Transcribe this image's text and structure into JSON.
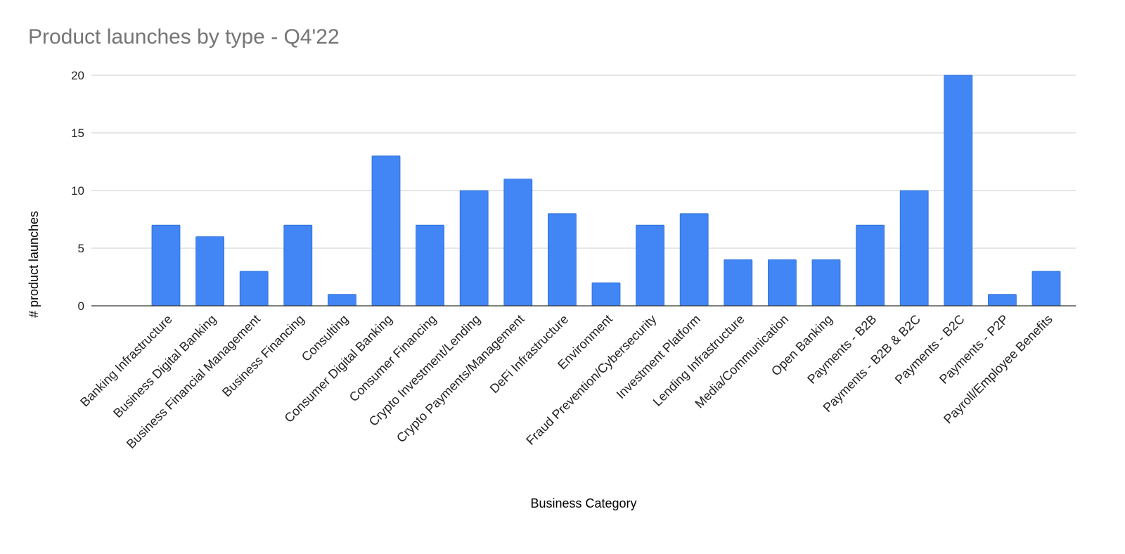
{
  "chart_data": {
    "type": "bar",
    "title": "Product launches by type - Q4'22",
    "xlabel": "Business Category",
    "ylabel": "# product launches",
    "ylim": [
      0,
      20
    ],
    "yticks": [
      0,
      5,
      10,
      15,
      20
    ],
    "grid": true,
    "legend": "none",
    "bar_color": "#4285f4",
    "categories": [
      "Banking Infrastructure",
      "Business Digital Banking",
      "Business Financial Management",
      "Business Financing",
      "Consulting",
      "Consumer Digital Banking",
      "Consumer Financing",
      "Crypto Investment/Lending",
      "Crypto Payments/Management",
      "DeFi Infrastructure",
      "Environment",
      "Fraud Prevention/Cybersecurity",
      "Investment Platform",
      "Lending Infrastructure",
      "Media/Communication",
      "Open Banking",
      "Payments - B2B",
      "Payments - B2B & B2C",
      "Payments - B2C",
      "Payments - P2P",
      "Payroll/Employee Benefits"
    ],
    "values": [
      7,
      6,
      3,
      7,
      1,
      13,
      7,
      10,
      11,
      8,
      2,
      7,
      8,
      4,
      4,
      4,
      7,
      10,
      20,
      1,
      3
    ]
  }
}
